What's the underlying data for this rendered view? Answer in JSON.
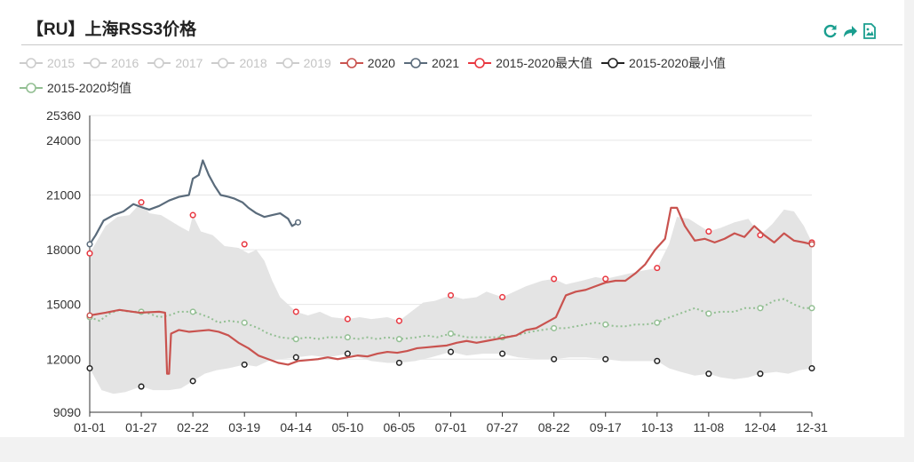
{
  "title": "【RU】上海RSS3价格",
  "toolbox": {
    "restore": "restore-icon",
    "share": "share-icon",
    "save": "save-image-icon"
  },
  "colors": {
    "accent": "#1a9e8f",
    "band": "#e4e4e4"
  },
  "legend": [
    {
      "name": "2015",
      "color": "#cccccc",
      "active": false
    },
    {
      "name": "2016",
      "color": "#cccccc",
      "active": false
    },
    {
      "name": "2017",
      "color": "#cccccc",
      "active": false
    },
    {
      "name": "2018",
      "color": "#cccccc",
      "active": false
    },
    {
      "name": "2019",
      "color": "#cccccc",
      "active": false
    },
    {
      "name": "2020",
      "color": "#c9534f",
      "active": true
    },
    {
      "name": "2021",
      "color": "#5a6b7b",
      "active": true
    },
    {
      "name": "2015-2020最大值",
      "color": "#e8363f",
      "active": true
    },
    {
      "name": "2015-2020最小值",
      "color": "#222222",
      "active": true
    },
    {
      "name": "2015-2020均值",
      "color": "#93bf93",
      "active": true
    }
  ],
  "chart_data": {
    "type": "line",
    "x_ticks": [
      "01-01",
      "01-27",
      "02-22",
      "03-19",
      "04-14",
      "05-10",
      "06-05",
      "07-01",
      "07-27",
      "08-22",
      "09-17",
      "10-13",
      "11-08",
      "12-04",
      "12-31"
    ],
    "y_ticks": [
      9090,
      12000,
      15000,
      18000,
      21000,
      24000,
      25360
    ],
    "ylim": [
      9090,
      25360
    ],
    "xlim": [
      0,
      364
    ],
    "grid": true,
    "legend_position": "top",
    "series": [
      {
        "name": "2020",
        "color": "#c9534f",
        "points": [
          [
            0,
            14400
          ],
          [
            8,
            14550
          ],
          [
            15,
            14700
          ],
          [
            25,
            14550
          ],
          [
            35,
            14600
          ],
          [
            38,
            14550
          ],
          [
            39,
            11200
          ],
          [
            40,
            11200
          ],
          [
            41,
            13400
          ],
          [
            45,
            13600
          ],
          [
            50,
            13500
          ],
          [
            55,
            13550
          ],
          [
            60,
            13600
          ],
          [
            65,
            13500
          ],
          [
            70,
            13300
          ],
          [
            75,
            12900
          ],
          [
            80,
            12600
          ],
          [
            85,
            12200
          ],
          [
            90,
            12000
          ],
          [
            95,
            11800
          ],
          [
            100,
            11700
          ],
          [
            105,
            11900
          ],
          [
            110,
            11950
          ],
          [
            115,
            12000
          ],
          [
            120,
            12100
          ],
          [
            125,
            12000
          ],
          [
            130,
            12100
          ],
          [
            135,
            12200
          ],
          [
            140,
            12150
          ],
          [
            145,
            12300
          ],
          [
            150,
            12400
          ],
          [
            155,
            12350
          ],
          [
            160,
            12450
          ],
          [
            165,
            12600
          ],
          [
            170,
            12650
          ],
          [
            175,
            12700
          ],
          [
            180,
            12750
          ],
          [
            185,
            12900
          ],
          [
            190,
            13000
          ],
          [
            195,
            12900
          ],
          [
            200,
            13000
          ],
          [
            205,
            13100
          ],
          [
            210,
            13200
          ],
          [
            215,
            13300
          ],
          [
            220,
            13600
          ],
          [
            225,
            13700
          ],
          [
            230,
            14000
          ],
          [
            235,
            14300
          ],
          [
            240,
            15500
          ],
          [
            245,
            15700
          ],
          [
            250,
            15800
          ],
          [
            255,
            16000
          ],
          [
            260,
            16200
          ],
          [
            265,
            16300
          ],
          [
            270,
            16300
          ],
          [
            275,
            16700
          ],
          [
            280,
            17200
          ],
          [
            285,
            18000
          ],
          [
            290,
            18600
          ],
          [
            293,
            20300
          ],
          [
            296,
            20300
          ],
          [
            300,
            19300
          ],
          [
            305,
            18500
          ],
          [
            310,
            18600
          ],
          [
            315,
            18400
          ],
          [
            320,
            18600
          ],
          [
            325,
            18900
          ],
          [
            330,
            18700
          ],
          [
            335,
            19300
          ],
          [
            340,
            18800
          ],
          [
            345,
            18400
          ],
          [
            350,
            18900
          ],
          [
            355,
            18500
          ],
          [
            360,
            18400
          ],
          [
            364,
            18300
          ]
        ]
      },
      {
        "name": "2021",
        "color": "#5a6b7b",
        "points": [
          [
            0,
            18300
          ],
          [
            3,
            18800
          ],
          [
            7,
            19600
          ],
          [
            12,
            19900
          ],
          [
            17,
            20100
          ],
          [
            22,
            20500
          ],
          [
            27,
            20300
          ],
          [
            30,
            20200
          ],
          [
            35,
            20400
          ],
          [
            40,
            20700
          ],
          [
            45,
            20900
          ],
          [
            50,
            21000
          ],
          [
            52,
            21900
          ],
          [
            55,
            22100
          ],
          [
            57,
            22900
          ],
          [
            60,
            22100
          ],
          [
            63,
            21500
          ],
          [
            66,
            21000
          ],
          [
            70,
            20900
          ],
          [
            73,
            20800
          ],
          [
            77,
            20600
          ],
          [
            80,
            20300
          ],
          [
            84,
            20000
          ],
          [
            88,
            19800
          ],
          [
            92,
            19900
          ],
          [
            96,
            20000
          ],
          [
            100,
            19700
          ],
          [
            102,
            19300
          ],
          [
            105,
            19500
          ]
        ]
      },
      {
        "name": "2015-2020最大值",
        "color": "#e8363f",
        "markers": true,
        "points": [
          [
            0,
            17800
          ],
          [
            26,
            20600
          ],
          [
            52,
            19900
          ],
          [
            78,
            18300
          ],
          [
            104,
            14600
          ],
          [
            130,
            14200
          ],
          [
            156,
            14100
          ],
          [
            182,
            15500
          ],
          [
            208,
            15400
          ],
          [
            234,
            16400
          ],
          [
            260,
            16400
          ],
          [
            286,
            17000
          ],
          [
            312,
            19000
          ],
          [
            338,
            18800
          ],
          [
            364,
            18400
          ]
        ]
      },
      {
        "name": "2015-2020最小值",
        "color": "#222222",
        "markers": true,
        "points": [
          [
            0,
            11500
          ],
          [
            26,
            10500
          ],
          [
            52,
            10800
          ],
          [
            78,
            11700
          ],
          [
            104,
            12100
          ],
          [
            130,
            12300
          ],
          [
            156,
            11800
          ],
          [
            182,
            12400
          ],
          [
            208,
            12300
          ],
          [
            234,
            12000
          ],
          [
            260,
            12000
          ],
          [
            286,
            11900
          ],
          [
            312,
            11200
          ],
          [
            338,
            11200
          ],
          [
            364,
            11500
          ]
        ]
      },
      {
        "name": "2015-2020均值",
        "color": "#93bf93",
        "markers": true,
        "dashed": true,
        "points": [
          [
            0,
            14300
          ],
          [
            5,
            14100
          ],
          [
            10,
            14500
          ],
          [
            15,
            14700
          ],
          [
            20,
            14600
          ],
          [
            26,
            14600
          ],
          [
            30,
            14500
          ],
          [
            35,
            14300
          ],
          [
            40,
            14400
          ],
          [
            45,
            14600
          ],
          [
            52,
            14600
          ],
          [
            55,
            14500
          ],
          [
            60,
            14300
          ],
          [
            65,
            14000
          ],
          [
            70,
            14100
          ],
          [
            78,
            14000
          ],
          [
            85,
            13700
          ],
          [
            90,
            13400
          ],
          [
            96,
            13200
          ],
          [
            104,
            13100
          ],
          [
            110,
            13200
          ],
          [
            115,
            13100
          ],
          [
            120,
            13200
          ],
          [
            130,
            13200
          ],
          [
            135,
            13100
          ],
          [
            140,
            13200
          ],
          [
            145,
            13100
          ],
          [
            150,
            13200
          ],
          [
            156,
            13100
          ],
          [
            165,
            13200
          ],
          [
            170,
            13300
          ],
          [
            175,
            13200
          ],
          [
            182,
            13400
          ],
          [
            190,
            13200
          ],
          [
            200,
            13200
          ],
          [
            208,
            13200
          ],
          [
            215,
            13300
          ],
          [
            222,
            13500
          ],
          [
            228,
            13600
          ],
          [
            234,
            13700
          ],
          [
            240,
            13700
          ],
          [
            245,
            13800
          ],
          [
            250,
            13900
          ],
          [
            255,
            14000
          ],
          [
            260,
            13900
          ],
          [
            265,
            13800
          ],
          [
            270,
            13800
          ],
          [
            275,
            13900
          ],
          [
            280,
            13900
          ],
          [
            286,
            14000
          ],
          [
            290,
            14200
          ],
          [
            295,
            14400
          ],
          [
            300,
            14600
          ],
          [
            305,
            14800
          ],
          [
            312,
            14500
          ],
          [
            318,
            14600
          ],
          [
            325,
            14600
          ],
          [
            330,
            14800
          ],
          [
            338,
            14800
          ],
          [
            345,
            15200
          ],
          [
            350,
            15300
          ],
          [
            355,
            15000
          ],
          [
            360,
            14800
          ],
          [
            364,
            14800
          ]
        ]
      }
    ],
    "band": {
      "upper": [
        [
          0,
          17800
        ],
        [
          8,
          19300
        ],
        [
          14,
          19800
        ],
        [
          20,
          19900
        ],
        [
          26,
          20600
        ],
        [
          30,
          20000
        ],
        [
          36,
          19900
        ],
        [
          45,
          19300
        ],
        [
          50,
          19000
        ],
        [
          52,
          19900
        ],
        [
          56,
          19000
        ],
        [
          62,
          18800
        ],
        [
          68,
          18200
        ],
        [
          75,
          18100
        ],
        [
          80,
          17800
        ],
        [
          84,
          18000
        ],
        [
          88,
          17400
        ],
        [
          92,
          16300
        ],
        [
          96,
          15400
        ],
        [
          100,
          15000
        ],
        [
          104,
          14600
        ],
        [
          110,
          14400
        ],
        [
          116,
          14600
        ],
        [
          122,
          14300
        ],
        [
          130,
          14200
        ],
        [
          136,
          14300
        ],
        [
          142,
          14200
        ],
        [
          150,
          14300
        ],
        [
          156,
          14100
        ],
        [
          162,
          14600
        ],
        [
          168,
          15100
        ],
        [
          174,
          15200
        ],
        [
          182,
          15500
        ],
        [
          188,
          15300
        ],
        [
          195,
          15400
        ],
        [
          200,
          15700
        ],
        [
          208,
          15400
        ],
        [
          214,
          15700
        ],
        [
          220,
          16000
        ],
        [
          228,
          16300
        ],
        [
          234,
          16400
        ],
        [
          240,
          16100
        ],
        [
          248,
          16300
        ],
        [
          255,
          16500
        ],
        [
          260,
          16400
        ],
        [
          268,
          16600
        ],
        [
          276,
          16800
        ],
        [
          286,
          17000
        ],
        [
          292,
          18300
        ],
        [
          296,
          19800
        ],
        [
          302,
          19700
        ],
        [
          312,
          19000
        ],
        [
          318,
          19200
        ],
        [
          325,
          19500
        ],
        [
          332,
          19700
        ],
        [
          338,
          18800
        ],
        [
          344,
          19400
        ],
        [
          350,
          20200
        ],
        [
          355,
          20100
        ],
        [
          360,
          19300
        ],
        [
          364,
          18400
        ]
      ],
      "lower": [
        [
          0,
          11500
        ],
        [
          6,
          10300
        ],
        [
          12,
          10100
        ],
        [
          18,
          10200
        ],
        [
          26,
          10500
        ],
        [
          32,
          10300
        ],
        [
          40,
          10300
        ],
        [
          46,
          10400
        ],
        [
          52,
          10800
        ],
        [
          58,
          11200
        ],
        [
          64,
          11400
        ],
        [
          70,
          11500
        ],
        [
          78,
          11700
        ],
        [
          84,
          11600
        ],
        [
          90,
          11900
        ],
        [
          96,
          12000
        ],
        [
          104,
          12100
        ],
        [
          112,
          12200
        ],
        [
          120,
          12100
        ],
        [
          130,
          12300
        ],
        [
          136,
          12100
        ],
        [
          142,
          11900
        ],
        [
          150,
          11800
        ],
        [
          156,
          11800
        ],
        [
          164,
          11900
        ],
        [
          172,
          12100
        ],
        [
          182,
          12400
        ],
        [
          190,
          12200
        ],
        [
          198,
          12300
        ],
        [
          208,
          12300
        ],
        [
          216,
          12100
        ],
        [
          226,
          12000
        ],
        [
          234,
          12000
        ],
        [
          242,
          12100
        ],
        [
          250,
          12100
        ],
        [
          260,
          12000
        ],
        [
          268,
          11900
        ],
        [
          276,
          11900
        ],
        [
          286,
          11900
        ],
        [
          292,
          11500
        ],
        [
          298,
          11300
        ],
        [
          305,
          11100
        ],
        [
          312,
          11200
        ],
        [
          318,
          11000
        ],
        [
          325,
          10900
        ],
        [
          332,
          11000
        ],
        [
          338,
          11200
        ],
        [
          346,
          11300
        ],
        [
          352,
          11200
        ],
        [
          358,
          11400
        ],
        [
          364,
          11500
        ]
      ]
    }
  }
}
